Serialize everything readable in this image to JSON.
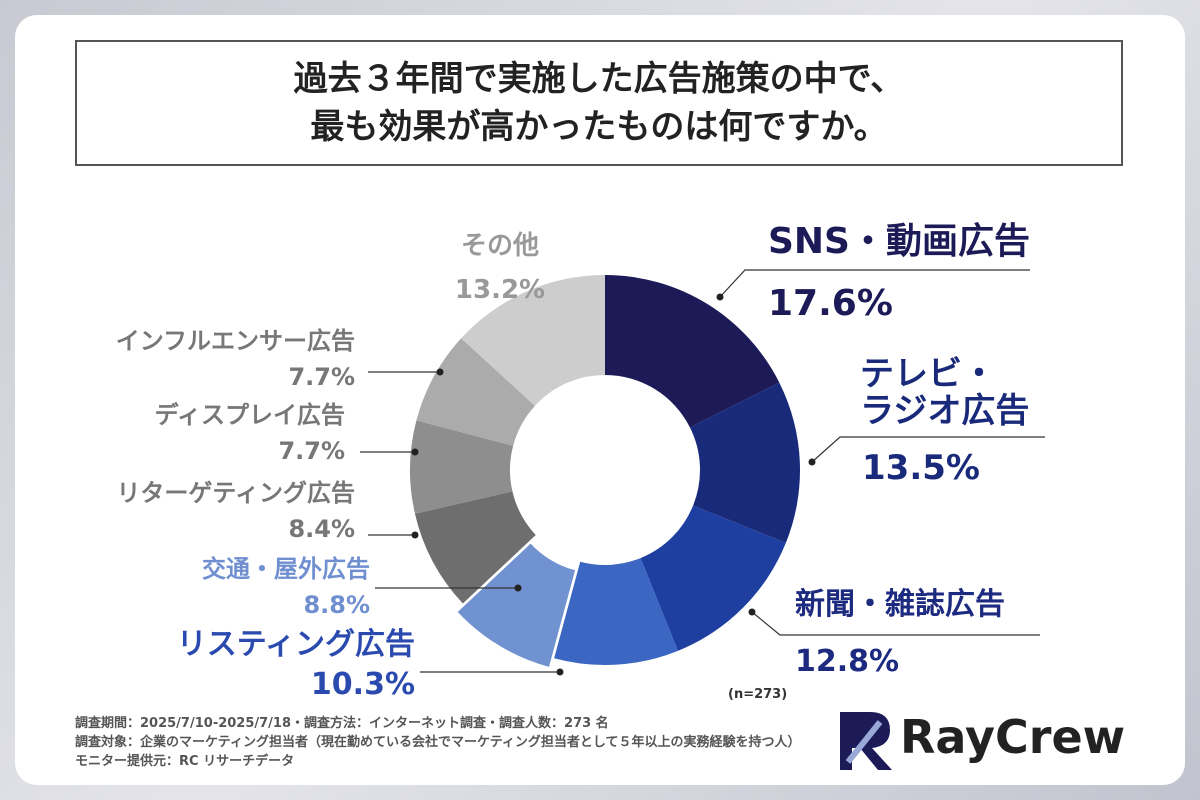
{
  "header": {
    "title_lines": [
      "過去３年間で実施した広告施策の中で、",
      "最も効果が高かったものは何ですか。"
    ]
  },
  "chart_data": {
    "type": "donut",
    "categories": [
      "SNS・動画広告",
      "テレビ・\nラジオ広告",
      "新聞・雑誌広告",
      "リスティング広告",
      "交通・屋外広告",
      "リターゲティング広告",
      "ディスプレイ広告",
      "インフルエンサー広告",
      "その他"
    ],
    "values": [
      17.6,
      13.5,
      12.8,
      10.3,
      8.8,
      8.4,
      7.7,
      7.7,
      13.2
    ],
    "value_labels": [
      "17.6%",
      "13.5%",
      "12.8%",
      "10.3%",
      "8.8%",
      "8.4%",
      "7.7%",
      "7.7%",
      "13.2%"
    ],
    "colors": [
      "#1c1a57",
      "#1a2a7a",
      "#1f3fa0",
      "#3b66c2",
      "#7092d0",
      "#6e6e6e",
      "#8e8e8e",
      "#ababab",
      "#cdcdcd"
    ],
    "note": "(n=273)"
  },
  "footer": {
    "notes": [
      "調査期間：2025/7/10-2025/7/18・調査方法：インターネット調査・調査人数：273 名",
      "調査対象：企業のマーケティング担当者（現在勤めている会社でマーケティング担当者として５年以上の実務経験を持つ人）",
      "モニター提供元：RC リサーチデータ"
    ],
    "logo": "RayCrew"
  }
}
